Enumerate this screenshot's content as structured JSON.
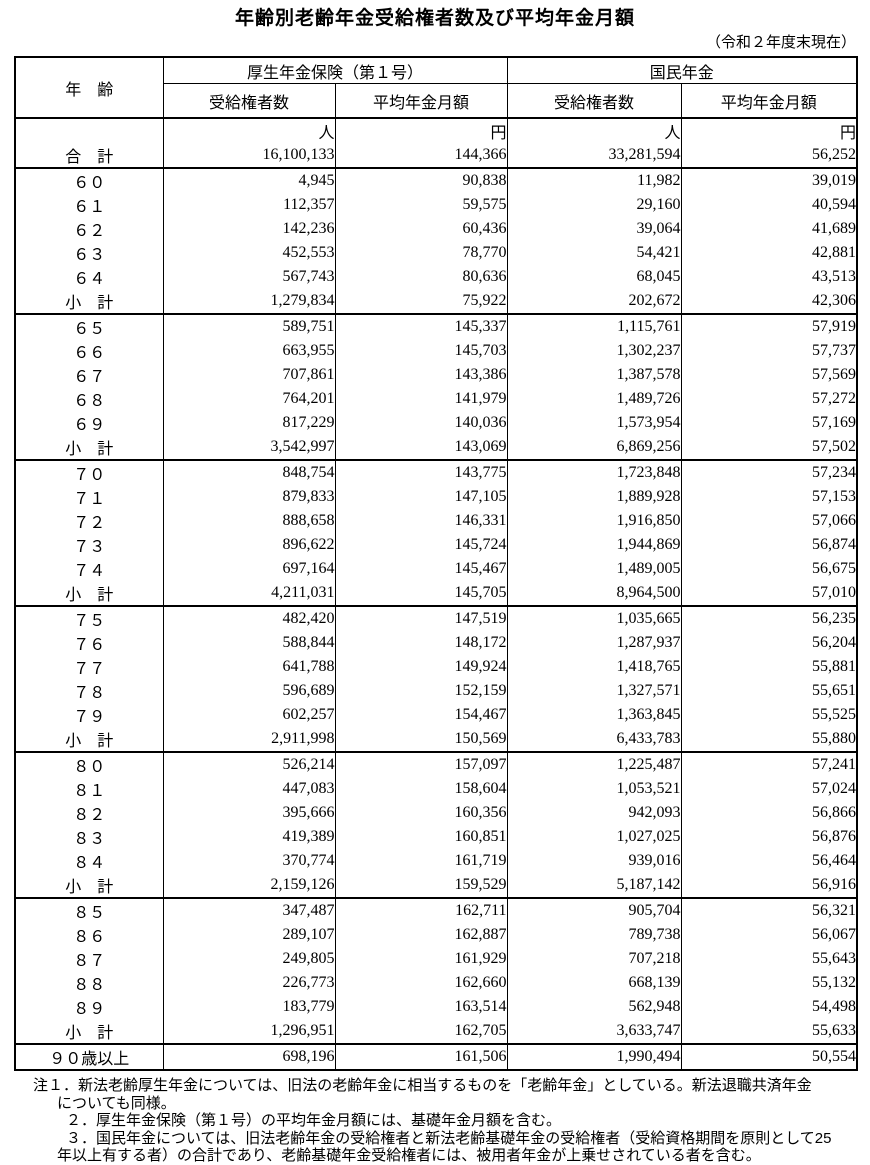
{
  "page": {
    "title": "年齢別老齢年金受給権者数及び平均年金月額",
    "date_note": "（令和２年度末現在）"
  },
  "table": {
    "headers": {
      "age": "年　齢",
      "group1": "厚生年金保険（第１号）",
      "group2": "国民年金",
      "recipients": "受給権者数",
      "avg_monthly": "平均年金月額"
    },
    "units": [
      "人",
      "円",
      "人",
      "円"
    ],
    "total": {
      "label": "合　計",
      "values": [
        "16,100,133",
        "144,366",
        "33,281,594",
        "56,252"
      ]
    },
    "groups": [
      {
        "rows": [
          {
            "label": "６０",
            "values": [
              "4,945",
              "90,838",
              "11,982",
              "39,019"
            ]
          },
          {
            "label": "６１",
            "values": [
              "112,357",
              "59,575",
              "29,160",
              "40,594"
            ]
          },
          {
            "label": "６２",
            "values": [
              "142,236",
              "60,436",
              "39,064",
              "41,689"
            ]
          },
          {
            "label": "６３",
            "values": [
              "452,553",
              "78,770",
              "54,421",
              "42,881"
            ]
          },
          {
            "label": "６４",
            "values": [
              "567,743",
              "80,636",
              "68,045",
              "43,513"
            ]
          },
          {
            "label": "小　計",
            "values": [
              "1,279,834",
              "75,922",
              "202,672",
              "42,306"
            ]
          }
        ]
      },
      {
        "rows": [
          {
            "label": "６５",
            "values": [
              "589,751",
              "145,337",
              "1,115,761",
              "57,919"
            ]
          },
          {
            "label": "６６",
            "values": [
              "663,955",
              "145,703",
              "1,302,237",
              "57,737"
            ]
          },
          {
            "label": "６７",
            "values": [
              "707,861",
              "143,386",
              "1,387,578",
              "57,569"
            ]
          },
          {
            "label": "６８",
            "values": [
              "764,201",
              "141,979",
              "1,489,726",
              "57,272"
            ]
          },
          {
            "label": "６９",
            "values": [
              "817,229",
              "140,036",
              "1,573,954",
              "57,169"
            ]
          },
          {
            "label": "小　計",
            "values": [
              "3,542,997",
              "143,069",
              "6,869,256",
              "57,502"
            ]
          }
        ]
      },
      {
        "rows": [
          {
            "label": "７０",
            "values": [
              "848,754",
              "143,775",
              "1,723,848",
              "57,234"
            ]
          },
          {
            "label": "７１",
            "values": [
              "879,833",
              "147,105",
              "1,889,928",
              "57,153"
            ]
          },
          {
            "label": "７２",
            "values": [
              "888,658",
              "146,331",
              "1,916,850",
              "57,066"
            ]
          },
          {
            "label": "７３",
            "values": [
              "896,622",
              "145,724",
              "1,944,869",
              "56,874"
            ]
          },
          {
            "label": "７４",
            "values": [
              "697,164",
              "145,467",
              "1,489,005",
              "56,675"
            ]
          },
          {
            "label": "小　計",
            "values": [
              "4,211,031",
              "145,705",
              "8,964,500",
              "57,010"
            ]
          }
        ]
      },
      {
        "rows": [
          {
            "label": "７５",
            "values": [
              "482,420",
              "147,519",
              "1,035,665",
              "56,235"
            ]
          },
          {
            "label": "７６",
            "values": [
              "588,844",
              "148,172",
              "1,287,937",
              "56,204"
            ]
          },
          {
            "label": "７７",
            "values": [
              "641,788",
              "149,924",
              "1,418,765",
              "55,881"
            ]
          },
          {
            "label": "７８",
            "values": [
              "596,689",
              "152,159",
              "1,327,571",
              "55,651"
            ]
          },
          {
            "label": "７９",
            "values": [
              "602,257",
              "154,467",
              "1,363,845",
              "55,525"
            ]
          },
          {
            "label": "小　計",
            "values": [
              "2,911,998",
              "150,569",
              "6,433,783",
              "55,880"
            ]
          }
        ]
      },
      {
        "rows": [
          {
            "label": "８０",
            "values": [
              "526,214",
              "157,097",
              "1,225,487",
              "57,241"
            ]
          },
          {
            "label": "８１",
            "values": [
              "447,083",
              "158,604",
              "1,053,521",
              "57,024"
            ]
          },
          {
            "label": "８２",
            "values": [
              "395,666",
              "160,356",
              "942,093",
              "56,866"
            ]
          },
          {
            "label": "８３",
            "values": [
              "419,389",
              "160,851",
              "1,027,025",
              "56,876"
            ]
          },
          {
            "label": "８４",
            "values": [
              "370,774",
              "161,719",
              "939,016",
              "56,464"
            ]
          },
          {
            "label": "小　計",
            "values": [
              "2,159,126",
              "159,529",
              "5,187,142",
              "56,916"
            ]
          }
        ]
      },
      {
        "rows": [
          {
            "label": "８５",
            "values": [
              "347,487",
              "162,711",
              "905,704",
              "56,321"
            ]
          },
          {
            "label": "８６",
            "values": [
              "289,107",
              "162,887",
              "789,738",
              "56,067"
            ]
          },
          {
            "label": "８７",
            "values": [
              "249,805",
              "161,929",
              "707,218",
              "55,643"
            ]
          },
          {
            "label": "８８",
            "values": [
              "226,773",
              "162,660",
              "668,139",
              "55,132"
            ]
          },
          {
            "label": "８９",
            "values": [
              "183,779",
              "163,514",
              "562,948",
              "54,498"
            ]
          },
          {
            "label": "小　計",
            "values": [
              "1,296,951",
              "162,705",
              "3,633,747",
              "55,633"
            ]
          }
        ]
      },
      {
        "rows": [
          {
            "label": "９０歳以上",
            "values": [
              "698,196",
              "161,506",
              "1,990,494",
              "50,554"
            ]
          }
        ]
      }
    ]
  },
  "notes": {
    "lines": [
      "注１．新法老齢厚生年金については、旧法の老齢年金に相当するものを「老齢年金」としている。新法退職共済年金",
      "についても同様。",
      "２．厚生年金保険（第１号）の平均年金月額には、基礎年金月額を含む。",
      "３．国民年金については、旧法老齢年金の受給権者と新法老齢基礎年金の受給権者（受給資格期間を原則として25",
      "年以上有する者）の合計であり、老齢基礎年金受給権者には、被用者年金が上乗せされている者を含む。"
    ]
  }
}
